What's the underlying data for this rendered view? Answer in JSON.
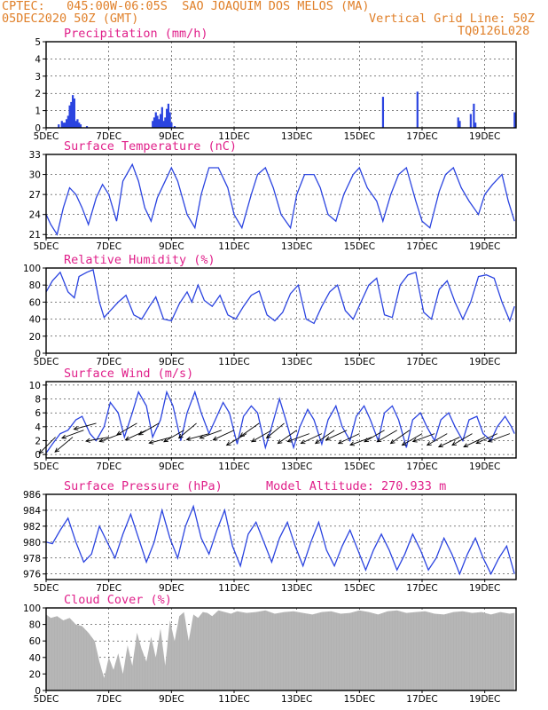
{
  "header": {
    "line1": "CPTEC:   045:00W-06:05S  SAO JOAQUIM DOS MELOS (MA)",
    "line2_left": "05DEC2020 50Z (GMT)",
    "line2_right": "Vertical Grid Line: 50Z",
    "line3_right": "TQ0126L028"
  },
  "colors": {
    "series": "#2b44e0",
    "cloud": "#b2b2b2",
    "title": "#e0208a",
    "header": "#e0802a"
  },
  "chart_data": [
    {
      "type": "bar",
      "title": "Precipitation (mm/h)",
      "ylim": [
        0,
        5
      ],
      "yticks": [
        0,
        1,
        2,
        3,
        4,
        5
      ],
      "xticks": [
        "5DEC",
        "7DEC",
        "9DEC",
        "11DEC",
        "13DEC",
        "15DEC",
        "17DEC",
        "19DEC"
      ],
      "xlim_days": [
        5,
        20
      ],
      "series": [
        {
          "x": [
            5.4,
            5.5,
            5.55,
            5.6,
            5.65,
            5.7,
            5.75,
            5.8,
            5.85,
            5.9,
            5.95,
            6.0,
            6.05,
            6.1,
            6.3,
            8.4,
            8.45,
            8.5,
            8.55,
            8.6,
            8.65,
            8.7,
            8.75,
            8.8,
            8.85,
            8.9,
            8.95,
            9.0,
            9.1,
            15.75,
            16.85,
            18.15,
            18.2,
            18.55,
            18.65,
            18.7,
            19.95
          ],
          "values": [
            0.2,
            0.4,
            0.3,
            0.3,
            0.5,
            0.7,
            1.3,
            1.5,
            1.9,
            1.7,
            0.4,
            0.5,
            0.3,
            0.2,
            0.1,
            0.4,
            0.6,
            0.9,
            0.7,
            0.5,
            0.8,
            1.2,
            0.4,
            0.6,
            1.1,
            1.4,
            0.9,
            0.3,
            0.1,
            1.8,
            2.1,
            0.6,
            0.4,
            0.8,
            1.4,
            0.3,
            0.9
          ]
        }
      ]
    },
    {
      "type": "line",
      "title": "Surface Temperature (nC)",
      "ylim": [
        20.5,
        33
      ],
      "yticks": [
        21,
        24,
        27,
        30,
        33
      ],
      "xticks": [
        "5DEC",
        "7DEC",
        "9DEC",
        "11DEC",
        "13DEC",
        "15DEC",
        "17DEC",
        "19DEC"
      ],
      "series": [
        {
          "x": [
            5.0,
            5.15,
            5.35,
            5.55,
            5.75,
            5.95,
            6.15,
            6.35,
            6.6,
            6.8,
            7.0,
            7.25,
            7.45,
            7.75,
            7.95,
            8.15,
            8.35,
            8.55,
            8.85,
            9.0,
            9.2,
            9.5,
            9.75,
            9.95,
            10.2,
            10.5,
            10.8,
            11.0,
            11.25,
            11.55,
            11.75,
            12.0,
            12.25,
            12.5,
            12.8,
            13.0,
            13.25,
            13.55,
            13.75,
            14.0,
            14.25,
            14.5,
            14.8,
            15.0,
            15.25,
            15.55,
            15.75,
            16.0,
            16.25,
            16.5,
            16.8,
            17.0,
            17.25,
            17.55,
            17.75,
            18.0,
            18.25,
            18.5,
            18.8,
            19.0,
            19.25,
            19.55,
            19.75,
            19.95
          ],
          "values": [
            24,
            22.5,
            21,
            25,
            28,
            27,
            25,
            22.5,
            26.5,
            28.5,
            27,
            23,
            29,
            31.5,
            29,
            25,
            23,
            26.5,
            29.5,
            31,
            29,
            24,
            22,
            27,
            31,
            31,
            28,
            24,
            22,
            27,
            30,
            31,
            28,
            24,
            22,
            27,
            30,
            30,
            28,
            24,
            23,
            27,
            30,
            31,
            28,
            26,
            23,
            27,
            30,
            31,
            26,
            23,
            22,
            27.5,
            30,
            31,
            28,
            26,
            24,
            27,
            28.5,
            30,
            26,
            23
          ]
        }
      ]
    },
    {
      "type": "line",
      "title": "Relative Humidity (%)",
      "ylim": [
        0,
        100
      ],
      "yticks": [
        0,
        20,
        40,
        60,
        80,
        100
      ],
      "xticks": [
        "5DEC",
        "7DEC",
        "9DEC",
        "11DEC",
        "13DEC",
        "15DEC",
        "17DEC",
        "19DEC"
      ],
      "series": [
        {
          "x": [
            5.0,
            5.2,
            5.45,
            5.7,
            5.9,
            6.05,
            6.3,
            6.5,
            6.7,
            6.85,
            7.05,
            7.3,
            7.55,
            7.8,
            8.05,
            8.3,
            8.5,
            8.75,
            9.0,
            9.25,
            9.5,
            9.65,
            9.85,
            10.05,
            10.3,
            10.55,
            10.8,
            11.05,
            11.3,
            11.55,
            11.8,
            12.05,
            12.3,
            12.55,
            12.8,
            13.05,
            13.3,
            13.55,
            13.8,
            14.05,
            14.3,
            14.55,
            14.8,
            15.05,
            15.3,
            15.55,
            15.8,
            16.05,
            16.3,
            16.55,
            16.8,
            17.05,
            17.3,
            17.55,
            17.8,
            18.05,
            18.3,
            18.55,
            18.8,
            19.05,
            19.3,
            19.55,
            19.8,
            19.95
          ],
          "values": [
            72,
            85,
            95,
            72,
            65,
            90,
            95,
            98,
            60,
            42,
            50,
            60,
            68,
            45,
            40,
            55,
            66,
            40,
            38,
            58,
            72,
            60,
            80,
            62,
            55,
            68,
            45,
            40,
            55,
            68,
            73,
            45,
            38,
            48,
            70,
            80,
            40,
            35,
            55,
            72,
            80,
            50,
            40,
            60,
            80,
            88,
            45,
            42,
            80,
            92,
            95,
            48,
            40,
            75,
            85,
            60,
            40,
            60,
            90,
            92,
            88,
            60,
            38,
            55
          ]
        }
      ]
    },
    {
      "type": "line",
      "title": "Surface Wind (m/s)",
      "ylim": [
        -0.5,
        10.5
      ],
      "yticks": [
        0,
        2,
        4,
        6,
        8,
        10
      ],
      "xticks": [
        "5DEC",
        "7DEC",
        "9DEC",
        "11DEC",
        "13DEC",
        "15DEC",
        "17DEC",
        "19DEC"
      ],
      "series": [
        {
          "x": [
            5.0,
            5.2,
            5.45,
            5.7,
            5.95,
            6.15,
            6.4,
            6.6,
            6.85,
            7.05,
            7.3,
            7.5,
            7.75,
            7.95,
            8.2,
            8.4,
            8.65,
            8.85,
            9.05,
            9.3,
            9.5,
            9.75,
            9.95,
            10.2,
            10.4,
            10.65,
            10.85,
            11.1,
            11.3,
            11.55,
            11.75,
            12.0,
            12.2,
            12.45,
            12.65,
            12.9,
            13.1,
            13.35,
            13.55,
            13.8,
            14.0,
            14.25,
            14.45,
            14.7,
            14.9,
            15.15,
            15.35,
            15.6,
            15.8,
            16.05,
            16.25,
            16.5,
            16.7,
            16.95,
            17.15,
            17.4,
            17.6,
            17.85,
            18.05,
            18.3,
            18.5,
            18.75,
            18.95,
            19.2,
            19.4,
            19.65,
            19.85,
            19.95
          ],
          "values": [
            0.2,
            1.5,
            3,
            3.5,
            5,
            5.5,
            3,
            2,
            4,
            7.5,
            6,
            2.5,
            6,
            9,
            7,
            2.5,
            5,
            9,
            7,
            2,
            6,
            9,
            6,
            3,
            5,
            7.5,
            6,
            1.5,
            5.5,
            7,
            6,
            1,
            4,
            8,
            5,
            1,
            4,
            6.5,
            5,
            1.5,
            5,
            7,
            4,
            2,
            5.5,
            7,
            5,
            2,
            6,
            7,
            5,
            1,
            5,
            6,
            4,
            2,
            5,
            6,
            4,
            2,
            5,
            5.5,
            3,
            2,
            4,
            5.5,
            4,
            3
          ]
        }
      ],
      "arrows": {
        "x": [
          5.3,
          5.85,
          6.2,
          6.6,
          7.0,
          7.4,
          7.9,
          8.2,
          8.6,
          9.0,
          9.4,
          9.8,
          10.2,
          10.6,
          11.0,
          11.4,
          11.8,
          12.2,
          12.6,
          13.0,
          13.4,
          13.8,
          14.2,
          14.6,
          15.0,
          15.4,
          15.8,
          16.2,
          16.6,
          17.0,
          17.4,
          17.8,
          18.2,
          18.6,
          19.0,
          19.4,
          19.8
        ],
        "speed": [
          2.5,
          2.5,
          3.5,
          4.5,
          2.5,
          3,
          4.5,
          3.5,
          4.5,
          2.5,
          3.5,
          4.5,
          3,
          3.5,
          3.5,
          3,
          4.5,
          3.5,
          4.5,
          3.5,
          3,
          3,
          3.5,
          3.5,
          3,
          2.5,
          3.5,
          3.5,
          3.5,
          3,
          3,
          3,
          2.5,
          3,
          2.5,
          3,
          3
        ],
        "dir_deg": [
          45,
          40,
          20,
          15,
          10,
          20,
          30,
          25,
          30,
          15,
          30,
          40,
          15,
          20,
          25,
          30,
          35,
          30,
          40,
          35,
          20,
          25,
          35,
          25,
          25,
          20,
          30,
          30,
          35,
          30,
          20,
          30,
          25,
          30,
          25,
          25,
          20
        ]
      }
    },
    {
      "type": "line",
      "title": "Surface Pressure (hPa)",
      "annotation": "Model Altitude: 270.933 m",
      "ylim": [
        975.3,
        986
      ],
      "yticks": [
        976,
        978,
        980,
        982,
        984,
        986
      ],
      "xticks": [
        "5DEC",
        "7DEC",
        "9DEC",
        "11DEC",
        "13DEC",
        "15DEC",
        "17DEC",
        "19DEC"
      ],
      "series": [
        {
          "x": [
            5.0,
            5.2,
            5.45,
            5.7,
            5.95,
            6.2,
            6.45,
            6.7,
            6.95,
            7.2,
            7.45,
            7.7,
            7.95,
            8.2,
            8.45,
            8.7,
            8.95,
            9.2,
            9.45,
            9.7,
            9.95,
            10.2,
            10.45,
            10.7,
            10.95,
            11.2,
            11.45,
            11.7,
            11.95,
            12.2,
            12.45,
            12.7,
            12.95,
            13.2,
            13.45,
            13.7,
            13.95,
            14.2,
            14.45,
            14.7,
            14.95,
            15.2,
            15.45,
            15.7,
            15.95,
            16.2,
            16.45,
            16.7,
            16.95,
            17.2,
            17.45,
            17.7,
            17.95,
            18.2,
            18.45,
            18.7,
            18.95,
            19.2,
            19.45,
            19.7,
            19.95
          ],
          "values": [
            980,
            979.8,
            981.5,
            983,
            980,
            977.5,
            978.5,
            982,
            980,
            978,
            981,
            983.5,
            980.5,
            977.5,
            980,
            984,
            980.5,
            978,
            982,
            984.5,
            980.5,
            978.5,
            981.5,
            984,
            979.5,
            977,
            981,
            982.5,
            980,
            977.5,
            980.5,
            982.5,
            979.5,
            977,
            980,
            982.5,
            979,
            977,
            979.5,
            981.5,
            979,
            976.5,
            979,
            981,
            979,
            976.5,
            978.5,
            981,
            979,
            976.5,
            978,
            980.5,
            978.5,
            976,
            978.5,
            980.5,
            978,
            976,
            978,
            979.5,
            976
          ]
        }
      ]
    },
    {
      "type": "area",
      "title": "Cloud Cover (%)",
      "ylim": [
        0,
        100
      ],
      "yticks": [
        0,
        20,
        40,
        60,
        80,
        100
      ],
      "xticks": [
        "5DEC",
        "7DEC",
        "9DEC",
        "11DEC",
        "13DEC",
        "15DEC",
        "17DEC",
        "19DEC"
      ],
      "series": [
        {
          "x": [
            5.0,
            5.15,
            5.35,
            5.55,
            5.75,
            5.95,
            6.15,
            6.35,
            6.55,
            6.7,
            6.85,
            7.0,
            7.15,
            7.3,
            7.45,
            7.6,
            7.75,
            7.9,
            8.05,
            8.2,
            8.35,
            8.5,
            8.65,
            8.8,
            8.95,
            9.1,
            9.25,
            9.4,
            9.55,
            9.7,
            9.85,
            10.0,
            10.15,
            10.3,
            10.5,
            10.7,
            10.9,
            11.1,
            11.4,
            11.7,
            12.0,
            12.3,
            12.6,
            12.9,
            13.2,
            13.5,
            13.8,
            14.1,
            14.4,
            14.7,
            15.0,
            15.3,
            15.6,
            15.9,
            16.2,
            16.5,
            16.8,
            17.1,
            17.4,
            17.7,
            18.0,
            18.3,
            18.6,
            18.9,
            19.2,
            19.5,
            19.8,
            19.95
          ],
          "values": [
            92,
            88,
            90,
            85,
            88,
            80,
            78,
            70,
            60,
            35,
            15,
            40,
            25,
            45,
            20,
            55,
            30,
            70,
            50,
            35,
            65,
            40,
            75,
            30,
            85,
            60,
            90,
            95,
            60,
            92,
            88,
            95,
            94,
            90,
            97,
            95,
            93,
            96,
            94,
            95,
            97,
            93,
            95,
            96,
            94,
            92,
            95,
            96,
            93,
            94,
            97,
            95,
            92,
            96,
            97,
            94,
            95,
            96,
            93,
            92,
            95,
            96,
            94,
            95,
            92,
            95,
            93,
            94
          ]
        }
      ]
    }
  ]
}
